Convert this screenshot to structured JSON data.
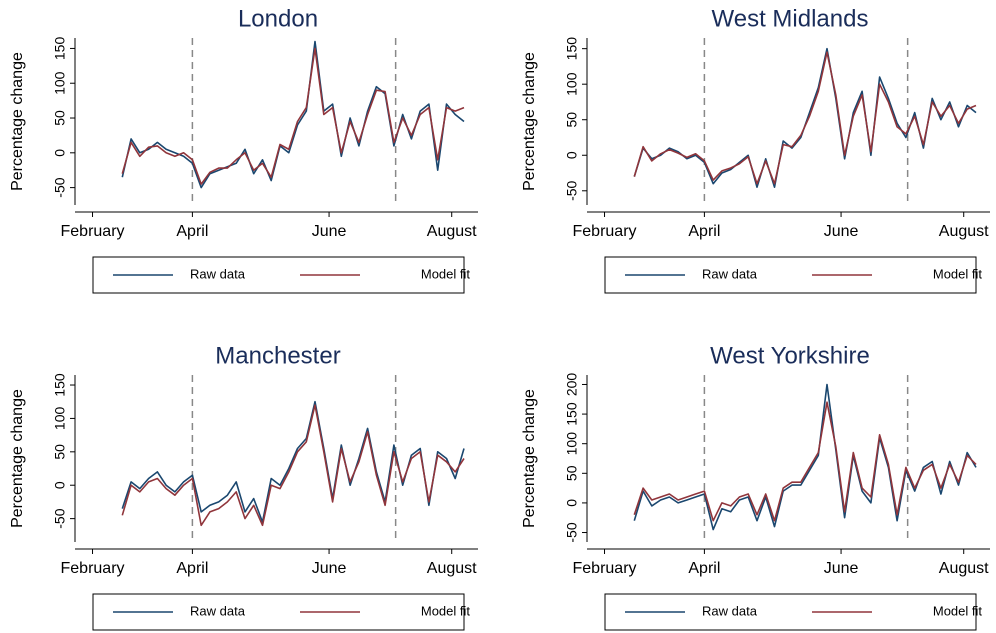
{
  "chart_data": [
    {
      "type": "line",
      "title": "London",
      "y_label": "Percentage change",
      "x": [
        27,
        32,
        37,
        42,
        47,
        52,
        57,
        62,
        67,
        72,
        77,
        82,
        87,
        92,
        97,
        102,
        107,
        112,
        117,
        122,
        127,
        132,
        137,
        142,
        147,
        152,
        157,
        162,
        167,
        172,
        177,
        182,
        187,
        192,
        197,
        202,
        207,
        212,
        217,
        222
      ],
      "xlim": [
        0,
        230
      ],
      "xticks": [
        {
          "value": 10,
          "label": "February"
        },
        {
          "value": 67,
          "label": "April"
        },
        {
          "value": 145,
          "label": "June"
        },
        {
          "value": 215,
          "label": "August"
        }
      ],
      "ylim": [
        -75,
        165
      ],
      "yticks": [
        -50,
        0,
        50,
        100,
        150
      ],
      "vlines": [
        67,
        183
      ],
      "legend_position": "bottom",
      "series": [
        {
          "name": "Raw data",
          "color": "#1a476f",
          "values": [
            -35,
            20,
            0,
            5,
            15,
            5,
            0,
            -5,
            -15,
            -50,
            -30,
            -25,
            -20,
            -15,
            5,
            -30,
            -10,
            -40,
            10,
            0,
            40,
            60,
            160,
            60,
            70,
            -5,
            50,
            10,
            60,
            95,
            85,
            10,
            55,
            20,
            60,
            70,
            -25,
            70,
            55,
            45
          ]
        },
        {
          "name": "Model fit",
          "color": "#90353b",
          "values": [
            -30,
            15,
            -5,
            8,
            10,
            0,
            -5,
            0,
            -10,
            -45,
            -28,
            -22,
            -22,
            -10,
            0,
            -25,
            -15,
            -35,
            12,
            5,
            45,
            65,
            150,
            55,
            65,
            0,
            45,
            15,
            55,
            90,
            88,
            15,
            50,
            25,
            55,
            65,
            -10,
            65,
            60,
            65
          ]
        }
      ]
    },
    {
      "type": "line",
      "title": "West Midlands",
      "y_label": "Percentage change",
      "x": [
        27,
        32,
        37,
        42,
        47,
        52,
        57,
        62,
        67,
        72,
        77,
        82,
        87,
        92,
        97,
        102,
        107,
        112,
        117,
        122,
        127,
        132,
        137,
        142,
        147,
        152,
        157,
        162,
        167,
        172,
        177,
        182,
        187,
        192,
        197,
        202,
        207,
        212,
        217,
        222
      ],
      "xlim": [
        0,
        230
      ],
      "xticks": [
        {
          "value": 10,
          "label": "February"
        },
        {
          "value": 67,
          "label": "April"
        },
        {
          "value": 145,
          "label": "June"
        },
        {
          "value": 215,
          "label": "August"
        }
      ],
      "ylim": [
        -70,
        165
      ],
      "yticks": [
        -50,
        0,
        50,
        100,
        150
      ],
      "vlines": [
        67,
        183
      ],
      "legend_position": "bottom",
      "series": [
        {
          "name": "Raw data",
          "color": "#1a476f",
          "values": [
            -30,
            10,
            -5,
            0,
            10,
            5,
            -5,
            0,
            -10,
            -40,
            -25,
            -20,
            -10,
            0,
            -45,
            -5,
            -45,
            20,
            10,
            25,
            60,
            95,
            150,
            80,
            -5,
            60,
            90,
            0,
            110,
            80,
            45,
            25,
            60,
            10,
            80,
            50,
            75,
            40,
            70,
            60
          ]
        },
        {
          "name": "Model fit",
          "color": "#90353b",
          "values": [
            -30,
            12,
            -8,
            2,
            8,
            3,
            -3,
            2,
            -8,
            -35,
            -22,
            -18,
            -12,
            -2,
            -40,
            -8,
            -40,
            15,
            12,
            28,
            55,
            90,
            145,
            85,
            0,
            55,
            85,
            5,
            100,
            75,
            40,
            30,
            55,
            15,
            75,
            55,
            70,
            45,
            65,
            70
          ]
        }
      ]
    },
    {
      "type": "line",
      "title": "Manchester",
      "y_label": "Percentage change",
      "x": [
        27,
        32,
        37,
        42,
        47,
        52,
        57,
        62,
        67,
        72,
        77,
        82,
        87,
        92,
        97,
        102,
        107,
        112,
        117,
        122,
        127,
        132,
        137,
        142,
        147,
        152,
        157,
        162,
        167,
        172,
        177,
        182,
        187,
        192,
        197,
        202,
        207,
        212,
        217,
        222
      ],
      "xlim": [
        0,
        230
      ],
      "xticks": [
        {
          "value": 10,
          "label": "February"
        },
        {
          "value": 67,
          "label": "April"
        },
        {
          "value": 145,
          "label": "June"
        },
        {
          "value": 215,
          "label": "August"
        }
      ],
      "ylim": [
        -85,
        165
      ],
      "yticks": [
        -50,
        0,
        50,
        100,
        150
      ],
      "vlines": [
        67,
        183
      ],
      "legend_position": "bottom",
      "series": [
        {
          "name": "Raw data",
          "color": "#1a476f",
          "values": [
            -35,
            5,
            -5,
            10,
            20,
            0,
            -10,
            5,
            15,
            -40,
            -30,
            -25,
            -15,
            5,
            -40,
            -20,
            -55,
            10,
            0,
            25,
            55,
            70,
            125,
            55,
            -20,
            60,
            0,
            40,
            85,
            20,
            -25,
            60,
            0,
            45,
            55,
            -30,
            50,
            40,
            10,
            55
          ]
        },
        {
          "name": "Model fit",
          "color": "#90353b",
          "values": [
            -45,
            0,
            -10,
            5,
            10,
            -5,
            -15,
            0,
            10,
            -60,
            -40,
            -35,
            -25,
            -10,
            -50,
            -30,
            -60,
            0,
            -5,
            20,
            50,
            65,
            120,
            50,
            -25,
            55,
            5,
            35,
            80,
            15,
            -30,
            50,
            5,
            40,
            50,
            -25,
            45,
            35,
            20,
            40
          ]
        }
      ]
    },
    {
      "type": "line",
      "title": "West Yorkshire",
      "y_label": "Percentage change",
      "x": [
        27,
        32,
        37,
        42,
        47,
        52,
        57,
        62,
        67,
        72,
        77,
        82,
        87,
        92,
        97,
        102,
        107,
        112,
        117,
        122,
        127,
        132,
        137,
        142,
        147,
        152,
        157,
        162,
        167,
        172,
        177,
        182,
        187,
        192,
        197,
        202,
        207,
        212,
        217,
        222
      ],
      "xlim": [
        0,
        230
      ],
      "xticks": [
        {
          "value": 10,
          "label": "February"
        },
        {
          "value": 67,
          "label": "April"
        },
        {
          "value": 145,
          "label": "June"
        },
        {
          "value": 215,
          "label": "August"
        }
      ],
      "ylim": [
        -66,
        216
      ],
      "yticks": [
        -50,
        0,
        50,
        100,
        150,
        200
      ],
      "vlines": [
        67,
        183
      ],
      "legend_position": "bottom",
      "series": [
        {
          "name": "Raw data",
          "color": "#1a476f",
          "values": [
            -30,
            20,
            -5,
            5,
            10,
            0,
            5,
            10,
            15,
            -45,
            -10,
            -15,
            5,
            10,
            -30,
            10,
            -40,
            20,
            30,
            30,
            55,
            80,
            200,
            90,
            -25,
            80,
            20,
            0,
            110,
            60,
            -30,
            55,
            20,
            60,
            70,
            15,
            70,
            30,
            85,
            60
          ]
        },
        {
          "name": "Model fit",
          "color": "#90353b",
          "values": [
            -20,
            25,
            5,
            10,
            15,
            5,
            10,
            15,
            20,
            -30,
            0,
            -5,
            10,
            15,
            -20,
            15,
            -30,
            25,
            35,
            35,
            60,
            85,
            170,
            95,
            -15,
            85,
            25,
            10,
            115,
            65,
            -20,
            60,
            25,
            55,
            65,
            25,
            65,
            35,
            80,
            65
          ]
        }
      ]
    }
  ]
}
